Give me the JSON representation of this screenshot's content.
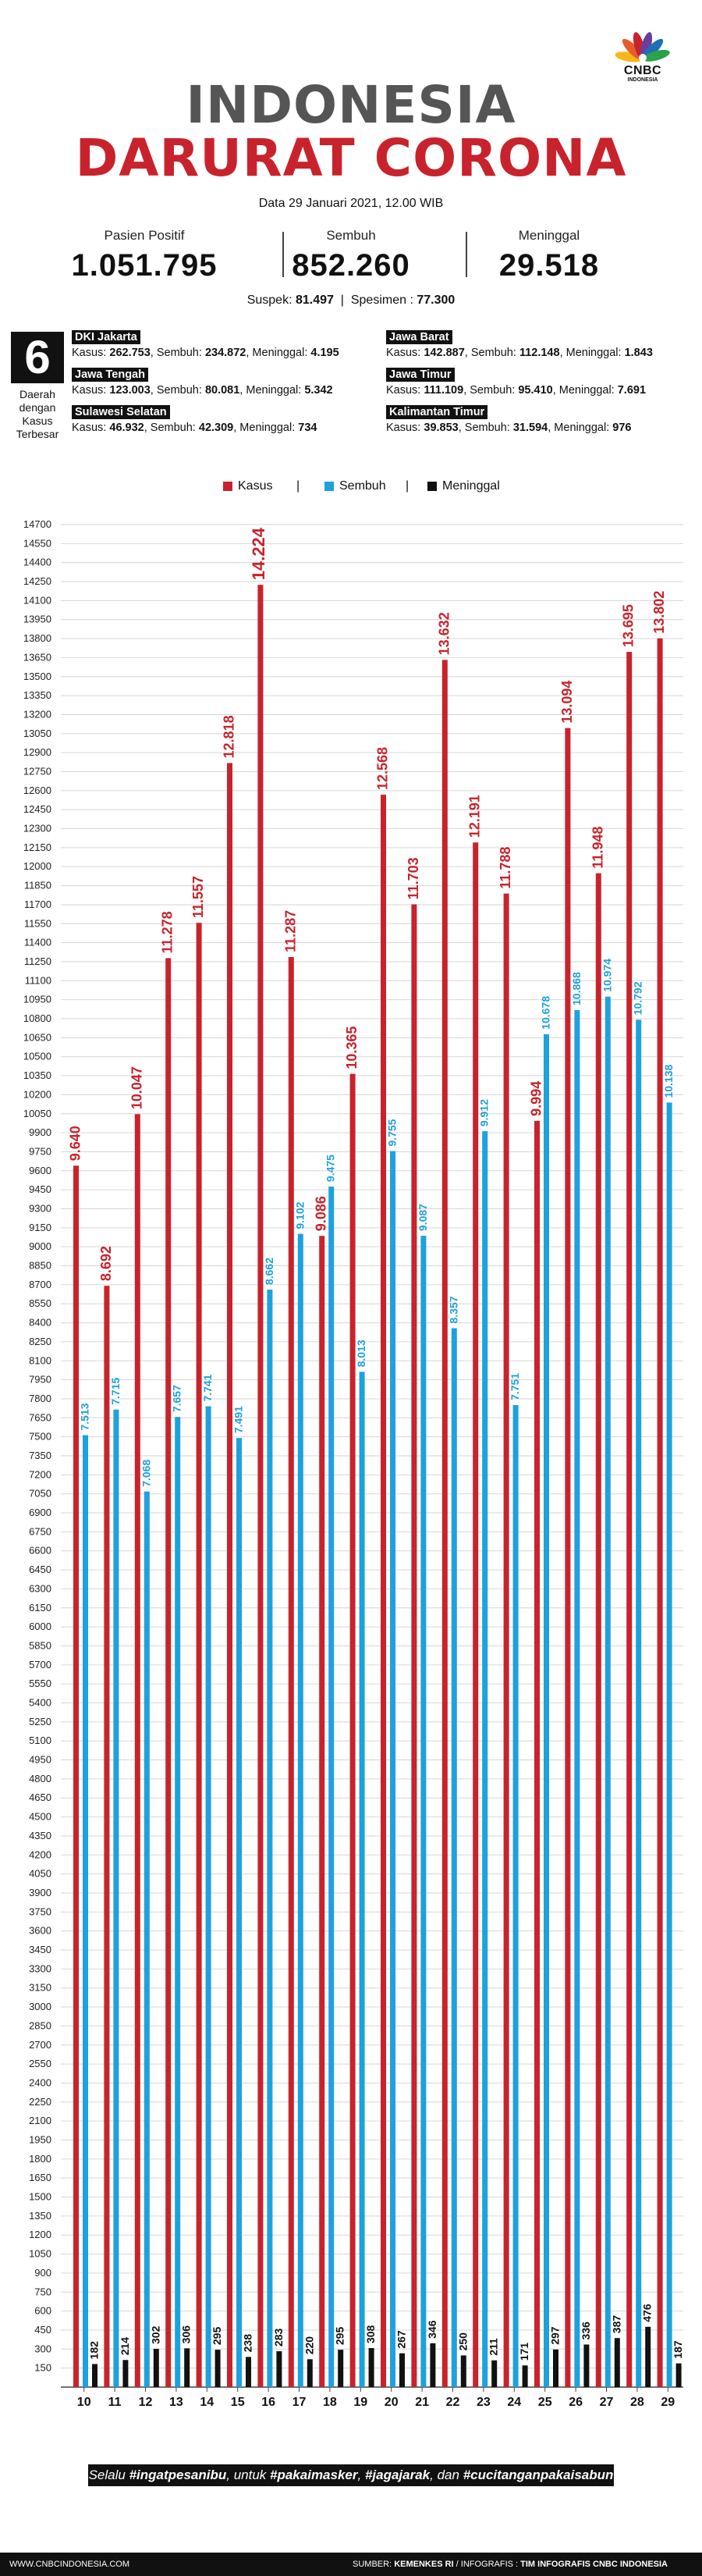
{
  "logo": {
    "text": "CNBC",
    "sub": "INDONESIA",
    "colors": [
      "#f7b718",
      "#e85a2c",
      "#c8232c",
      "#6a3e9c",
      "#1f6fb8",
      "#2aa24a"
    ]
  },
  "title": {
    "line1": "INDONESIA",
    "line2": "DARURAT CORONA"
  },
  "date": "Data 29 Januari 2021, 12.00 WIB",
  "stats": [
    {
      "label": "Pasien Positif",
      "value": "1.051.795"
    },
    {
      "label": "Sembuh",
      "value": "852.260"
    },
    {
      "label": "Meninggal",
      "value": "29.518"
    }
  ],
  "suspek": {
    "label": "Suspek:",
    "value": "81.497",
    "sep": "|",
    "spesimen_label": "Spesimen :",
    "spesimen_value": "77.300"
  },
  "regions": {
    "count": "6",
    "caption": [
      "Daerah",
      "dengan",
      "Kasus",
      "Terbesar"
    ],
    "kasus_label": "Kasus:",
    "sembuh_label": "Sembuh:",
    "meninggal_label": "Meninggal:",
    "items": [
      {
        "name": "DKI Jakarta",
        "kasus": "262.753",
        "sembuh": "234.872",
        "meninggal": "4.195"
      },
      {
        "name": "Jawa Barat",
        "kasus": "142.887",
        "sembuh": "112.148",
        "meninggal": "1.843"
      },
      {
        "name": "Jawa Tengah",
        "kasus": "123.003",
        "sembuh": "80.081",
        "meninggal": "5.342"
      },
      {
        "name": "Jawa Timur",
        "kasus": "111.109",
        "sembuh": "95.410",
        "meninggal": "7.691"
      },
      {
        "name": "Sulawesi Selatan",
        "kasus": "46.932",
        "sembuh": "42.309",
        "meninggal": "734"
      },
      {
        "name": "Kalimantan Timur",
        "kasus": "39.853",
        "sembuh": "31.594",
        "meninggal": "976"
      }
    ]
  },
  "legend": {
    "kasus": "Kasus",
    "sembuh": "Sembuh",
    "meninggal": "Meninggal",
    "sep": "|"
  },
  "colors": {
    "kasus": "#c8232c",
    "sembuh": "#1ea1dc",
    "meninggal": "#111111",
    "grid": "#d6d6d6"
  },
  "chart_data": {
    "type": "bar",
    "xlabel": "Januari",
    "ylabel": "",
    "ylim": [
      0,
      14700
    ],
    "ytick_step": 150,
    "grid": true,
    "legend_position": "top",
    "categories": [
      "10",
      "11",
      "12",
      "13",
      "14",
      "15",
      "16",
      "17",
      "18",
      "19",
      "20",
      "21",
      "22",
      "23",
      "24",
      "25",
      "26",
      "27",
      "28",
      "29"
    ],
    "series": [
      {
        "name": "Kasus",
        "key": "kasus",
        "values": [
          9640,
          8692,
          10047,
          11278,
          11557,
          12818,
          14224,
          11287,
          9086,
          10365,
          12568,
          11703,
          13632,
          12191,
          11788,
          9994,
          13094,
          11948,
          13695,
          13802
        ],
        "labels": [
          "9.640",
          "8.692",
          "10.047",
          "11.278",
          "11.557",
          "12.818",
          "14.224",
          "11.287",
          "9.086",
          "10.365",
          "12.568",
          "11.703",
          "13.632",
          "12.191",
          "11.788",
          "9.994",
          "13.094",
          "11.948",
          "13.695",
          "13.802"
        ]
      },
      {
        "name": "Sembuh",
        "key": "sembuh",
        "values": [
          7513,
          7715,
          7068,
          7657,
          7741,
          7491,
          8662,
          9102,
          9475,
          8013,
          9755,
          9087,
          8357,
          9912,
          7751,
          10678,
          10868,
          10974,
          10792,
          10138
        ],
        "labels": [
          "7.513",
          "7.715",
          "7.068",
          "7.657",
          "7.741",
          "7.491",
          "8.662",
          "9.102",
          "9.475",
          "8.013",
          "9.755",
          "9.087",
          "8.357",
          "9.912",
          "7.751",
          "10.678",
          "10.868",
          "10.974",
          "10.792",
          "10.138"
        ]
      },
      {
        "name": "Meninggal",
        "key": "meninggal",
        "values": [
          182,
          214,
          302,
          306,
          295,
          238,
          283,
          220,
          295,
          308,
          267,
          346,
          250,
          211,
          171,
          297,
          336,
          387,
          476,
          187
        ],
        "labels": [
          "182",
          "214",
          "302",
          "306",
          "295",
          "238",
          "283",
          "220",
          "295",
          "308",
          "267",
          "346",
          "250",
          "211",
          "171",
          "297",
          "336",
          "387",
          "476",
          "187"
        ]
      }
    ]
  },
  "footer": {
    "banner": [
      {
        "t": "Selalu ",
        "b": false
      },
      {
        "t": "#ingatpesanibu",
        "b": true
      },
      {
        "t": ", untuk ",
        "b": false
      },
      {
        "t": "#pakaimasker",
        "b": true
      },
      {
        "t": ", ",
        "b": false
      },
      {
        "t": "#jagajarak",
        "b": true
      },
      {
        "t": ", dan ",
        "b": false
      },
      {
        "t": "#cucitanganpakaisabun",
        "b": true
      }
    ],
    "website": "WWW.CNBCINDONESIA.COM",
    "source_prefix": "SUMBER: ",
    "source": "KEMENKES RI",
    "infografis_prefix": " / INFOGRAFIS : ",
    "infografis": "TIM INFOGRAFIS CNBC INDONESIA"
  }
}
